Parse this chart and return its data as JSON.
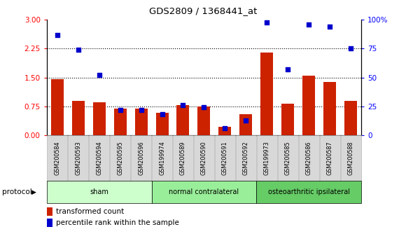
{
  "title": "GDS2809 / 1368441_at",
  "samples": [
    "GSM200584",
    "GSM200593",
    "GSM200594",
    "GSM200595",
    "GSM200596",
    "GSM199974",
    "GSM200589",
    "GSM200590",
    "GSM200591",
    "GSM200592",
    "GSM199973",
    "GSM200585",
    "GSM200586",
    "GSM200587",
    "GSM200588"
  ],
  "red_bars": [
    1.45,
    0.9,
    0.85,
    0.7,
    0.7,
    0.58,
    0.78,
    0.75,
    0.22,
    0.55,
    2.15,
    0.82,
    1.55,
    1.38,
    0.9
  ],
  "blue_dot_right": [
    87,
    74,
    52,
    22,
    22,
    18,
    26,
    24,
    6,
    13,
    98,
    57,
    96,
    94,
    75
  ],
  "groups": [
    {
      "label": "sham",
      "start": 0,
      "end": 5,
      "color": "#ccffcc"
    },
    {
      "label": "normal contralateral",
      "start": 5,
      "end": 10,
      "color": "#99ee99"
    },
    {
      "label": "osteoarthritic ipsilateral",
      "start": 10,
      "end": 15,
      "color": "#66cc66"
    }
  ],
  "left_yticks": [
    0,
    0.75,
    1.5,
    2.25,
    3.0
  ],
  "left_ylim": [
    0,
    3.0
  ],
  "right_yticks": [
    0,
    25,
    50,
    75,
    100
  ],
  "right_ylim": [
    0,
    100
  ],
  "bar_color": "#cc2200",
  "dot_color": "#0000cc",
  "tick_label_bg": "#d8d8d8",
  "legend_items": [
    "transformed count",
    "percentile rank within the sample"
  ],
  "protocol_label": "protocol"
}
